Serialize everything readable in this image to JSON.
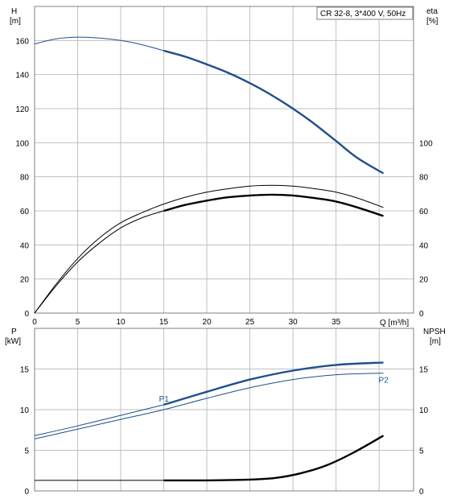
{
  "title": "CR 32-8, 3*400 V, 50Hz",
  "colors": {
    "blue": "#1f4e8c",
    "black": "#000000",
    "grid": "#c0c0c0"
  },
  "chart_data": [
    {
      "type": "line",
      "panel": "top",
      "title": "CR 32-8, 3*400 V, 50Hz",
      "xlabel": "Q [m³/h]",
      "ylabel_left": "H\n[m]",
      "ylabel_right": "eta\n[%]",
      "xlim": [
        0,
        44
      ],
      "ylim_left": [
        0,
        180
      ],
      "ylim_right": [
        0,
        180
      ],
      "x_ticks": [
        0,
        5,
        10,
        15,
        20,
        25,
        30,
        35
      ],
      "y_ticks_left": [
        0,
        20,
        40,
        60,
        80,
        100,
        120,
        140,
        160
      ],
      "y_ticks_right": [
        0,
        20,
        40,
        60,
        80,
        100
      ],
      "grid": true,
      "series": [
        {
          "axis": "left",
          "color": "#1f4e8c",
          "x": [
            0,
            2.5,
            5,
            7.5,
            10,
            12.5,
            15
          ],
          "y": [
            158,
            161,
            162,
            161.5,
            160,
            157.5,
            154
          ],
          "bold": false
        },
        {
          "axis": "left",
          "color": "#1f4e8c",
          "x": [
            15,
            17.5,
            20,
            22.5,
            25,
            27.5,
            30,
            32.5,
            35,
            37.5,
            40.5
          ],
          "y": [
            154,
            150.5,
            146,
            141,
            135,
            128,
            120,
            111,
            101,
            91,
            82
          ],
          "bold": true
        },
        {
          "axis": "right",
          "color": "#000000",
          "x": [
            0,
            2.5,
            5,
            7.5,
            10,
            12.5,
            15,
            17.5,
            20,
            22.5,
            25,
            27.5,
            30,
            32.5,
            35,
            37.5,
            40.5
          ],
          "y": [
            0,
            17,
            32,
            44,
            53,
            59,
            64,
            68,
            71,
            73,
            74.5,
            75,
            74.5,
            73,
            71,
            67.5,
            62
          ],
          "bold": false
        },
        {
          "axis": "right",
          "color": "#000000",
          "x": [
            0,
            2.5,
            5,
            7.5,
            10,
            12.5,
            15
          ],
          "y": [
            0,
            16,
            30,
            41,
            50,
            56,
            60
          ],
          "bold": false
        },
        {
          "axis": "right",
          "color": "#000000",
          "x": [
            15,
            17.5,
            20,
            22.5,
            25,
            27.5,
            30,
            32.5,
            35,
            37.5,
            40.5
          ],
          "y": [
            60,
            63.5,
            66,
            68,
            69,
            69.5,
            69,
            67.5,
            65.5,
            62,
            57
          ],
          "bold": true
        }
      ]
    },
    {
      "type": "line",
      "panel": "bottom",
      "ylabel_left": "P\n[kW]",
      "ylabel_right": "NPSH\n[m]",
      "xlim": [
        0,
        44
      ],
      "ylim_left": [
        0,
        20
      ],
      "ylim_right": [
        0,
        20
      ],
      "y_ticks_left": [
        0,
        5,
        10,
        15
      ],
      "y_ticks_right": [
        0,
        5,
        10,
        15
      ],
      "grid": true,
      "series": [
        {
          "name": "P1",
          "axis": "left",
          "color": "#1f4e8c",
          "x": [
            0,
            5,
            10,
            15
          ],
          "y": [
            6.8,
            8.0,
            9.3,
            10.6
          ],
          "bold": false
        },
        {
          "axis": "left",
          "color": "#1f4e8c",
          "x": [
            15,
            20,
            25,
            30,
            35,
            40.5
          ],
          "y": [
            10.6,
            12.2,
            13.7,
            14.8,
            15.5,
            15.8
          ],
          "bold": true
        },
        {
          "name": "P2",
          "axis": "left",
          "color": "#1f4e8c",
          "x": [
            0,
            5,
            10,
            15,
            20,
            25,
            30,
            35,
            40.5
          ],
          "y": [
            6.4,
            7.6,
            8.8,
            10.0,
            11.4,
            12.7,
            13.7,
            14.3,
            14.5
          ],
          "bold": false
        },
        {
          "axis": "right",
          "color": "#000000",
          "x": [
            0,
            5,
            10,
            15
          ],
          "y": [
            1.3,
            1.3,
            1.3,
            1.3
          ],
          "bold": false
        },
        {
          "axis": "right",
          "color": "#000000",
          "x": [
            15,
            20,
            25,
            28,
            31,
            34,
            37,
            40.5
          ],
          "y": [
            1.3,
            1.3,
            1.4,
            1.6,
            2.2,
            3.2,
            4.7,
            6.8
          ],
          "bold": true
        }
      ]
    }
  ]
}
